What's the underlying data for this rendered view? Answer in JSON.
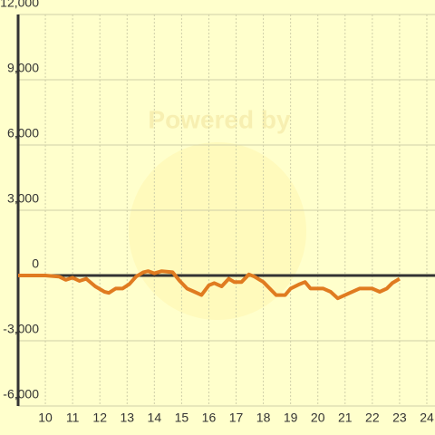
{
  "chart_data": {
    "type": "line",
    "watermark": "Powered by",
    "x": [
      9,
      10,
      10.5,
      10.75,
      11,
      11.25,
      11.5,
      11.83,
      12.17,
      12.33,
      12.58,
      12.83,
      13.08,
      13.33,
      13.6,
      13.77,
      14,
      14.27,
      14.67,
      14.93,
      15.2,
      15.47,
      15.73,
      16,
      16.2,
      16.47,
      16.73,
      16.93,
      17.2,
      17.47,
      17.67,
      18,
      18.47,
      18.8,
      19,
      19.33,
      19.53,
      19.73,
      20.2,
      20.47,
      20.73,
      21,
      21.53,
      22,
      22.27,
      22.53,
      22.73,
      23
    ],
    "series": [
      {
        "color": "#e07b20",
        "values": [
          0,
          0,
          -50,
          -200,
          -100,
          -250,
          -150,
          -500,
          -750,
          -800,
          -600,
          -600,
          -400,
          -50,
          150,
          200,
          100,
          200,
          150,
          -250,
          -600,
          -750,
          -900,
          -450,
          -350,
          -500,
          -150,
          -300,
          -300,
          50,
          -50,
          -300,
          -900,
          -900,
          -600,
          -400,
          -300,
          -600,
          -600,
          -750,
          -1050,
          -900,
          -600,
          -600,
          -750,
          -600,
          -350,
          -150
        ]
      }
    ],
    "xlim": [
      9,
      24.3
    ],
    "xticks": [
      10,
      11,
      12,
      13,
      14,
      15,
      16,
      17,
      18,
      19,
      20,
      21,
      22,
      23,
      24
    ],
    "ylim": [
      -6000,
      12000
    ],
    "yticks": [
      {
        "value": -6000,
        "label": "-6,000"
      },
      {
        "value": -3000,
        "label": "-3,000"
      },
      0,
      {
        "value": 3000,
        "label": "3,000"
      },
      {
        "value": 6000,
        "label": "6,000"
      },
      {
        "value": 9000,
        "label": "9,000"
      },
      {
        "value": 12000,
        "label": "12,000"
      }
    ],
    "grid": true
  }
}
